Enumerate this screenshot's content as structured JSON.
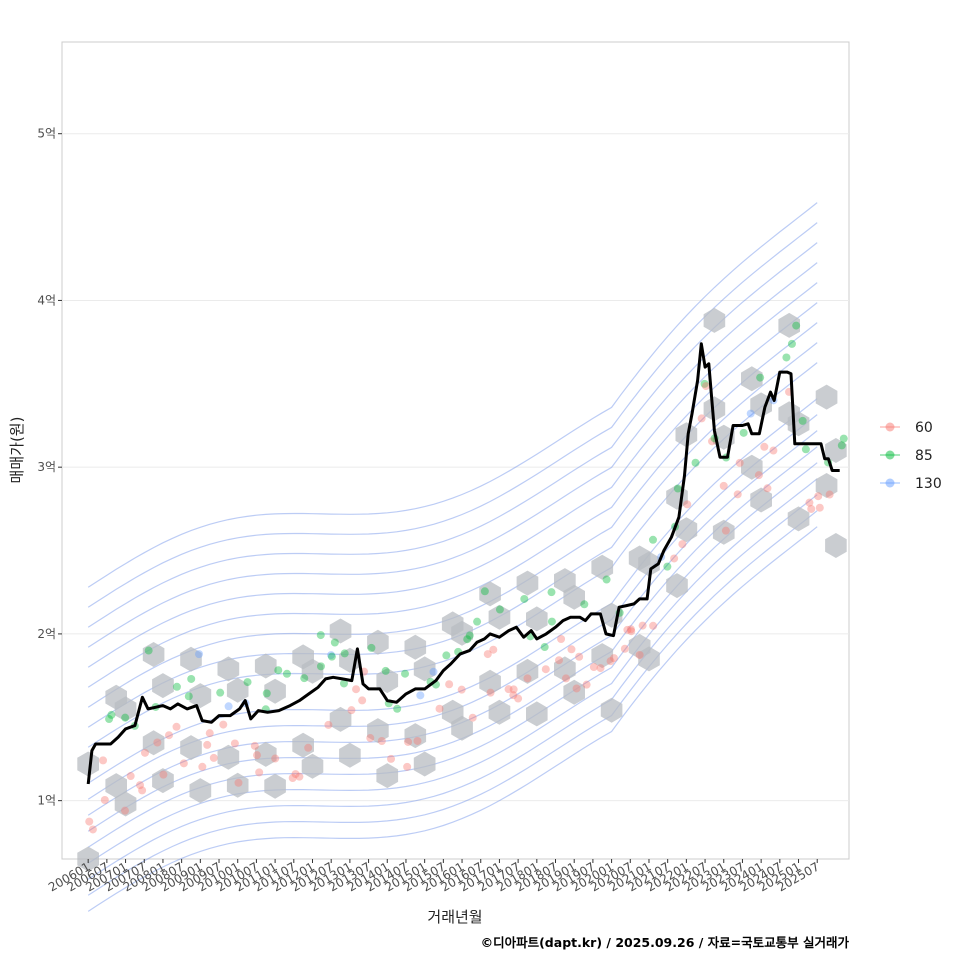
{
  "chart_data": {
    "type": "line",
    "xlabel": "거래년월",
    "ylabel": "매매가(원)",
    "caption": "©디아파트(dapt.kr) / 2025.09.26 / 자료=국토교통부 실거래가",
    "y_unit": "억원",
    "ylim": [
      0.65,
      5.55
    ],
    "x_index_range": [
      -1.4,
      40.7
    ],
    "grid": true,
    "y_ticks": [
      {
        "value": 1,
        "label": "1억"
      },
      {
        "value": 2,
        "label": "2억"
      },
      {
        "value": 3,
        "label": "3억"
      },
      {
        "value": 4,
        "label": "4억"
      },
      {
        "value": 5,
        "label": "5억"
      }
    ],
    "x_tick_labels": [
      "200601",
      "200607",
      "200701",
      "200707",
      "200801",
      "200807",
      "200901",
      "200907",
      "201001",
      "201007",
      "201101",
      "201107",
      "201201",
      "201207",
      "201301",
      "201307",
      "201401",
      "201407",
      "201501",
      "201507",
      "201601",
      "201607",
      "201701",
      "201707",
      "201801",
      "201807",
      "201901",
      "201907",
      "202001",
      "202007",
      "202101",
      "202107",
      "202201",
      "202207",
      "202301",
      "202307",
      "202401",
      "202407",
      "202501",
      "202507"
    ],
    "legend": {
      "placement": "right",
      "entries": [
        {
          "label": "60",
          "color": "#F8766D"
        },
        {
          "label": "85",
          "color": "#00BA38"
        },
        {
          "label": "130",
          "color": "#619CFF"
        }
      ]
    },
    "colors": {
      "line": "#000000",
      "hex": "#b8bcc2",
      "contour": "#6b8fe8",
      "grid": "#ebebeb",
      "panel_border": "#cccccc"
    },
    "trend_line": {
      "name": "median",
      "points": [
        [
          0,
          1.1
        ],
        [
          0.2,
          1.3
        ],
        [
          0.4,
          1.34
        ],
        [
          1.2,
          1.34
        ],
        [
          1.6,
          1.38
        ],
        [
          2.0,
          1.43
        ],
        [
          2.5,
          1.45
        ],
        [
          2.9,
          1.62
        ],
        [
          3.2,
          1.55
        ],
        [
          3.6,
          1.56
        ],
        [
          4.0,
          1.57
        ],
        [
          4.4,
          1.55
        ],
        [
          4.8,
          1.58
        ],
        [
          5.3,
          1.55
        ],
        [
          5.8,
          1.57
        ],
        [
          6.1,
          1.48
        ],
        [
          6.6,
          1.47
        ],
        [
          7.0,
          1.51
        ],
        [
          7.6,
          1.51
        ],
        [
          8.1,
          1.55
        ],
        [
          8.4,
          1.6
        ],
        [
          8.7,
          1.49
        ],
        [
          9.1,
          1.54
        ],
        [
          9.6,
          1.53
        ],
        [
          10.2,
          1.54
        ],
        [
          10.8,
          1.57
        ],
        [
          11.3,
          1.6
        ],
        [
          11.8,
          1.64
        ],
        [
          12.3,
          1.68
        ],
        [
          12.7,
          1.73
        ],
        [
          13.1,
          1.74
        ],
        [
          13.6,
          1.73
        ],
        [
          14.1,
          1.72
        ],
        [
          14.4,
          1.91
        ],
        [
          14.7,
          1.7
        ],
        [
          15.0,
          1.67
        ],
        [
          15.6,
          1.67
        ],
        [
          16.0,
          1.6
        ],
        [
          16.5,
          1.59
        ],
        [
          17.0,
          1.64
        ],
        [
          17.5,
          1.67
        ],
        [
          18.0,
          1.67
        ],
        [
          18.6,
          1.72
        ],
        [
          19.0,
          1.78
        ],
        [
          19.4,
          1.82
        ],
        [
          19.9,
          1.88
        ],
        [
          20.4,
          1.9
        ],
        [
          20.8,
          1.95
        ],
        [
          21.2,
          1.97
        ],
        [
          21.5,
          2.0
        ],
        [
          22.0,
          1.98
        ],
        [
          22.5,
          2.02
        ],
        [
          22.9,
          2.04
        ],
        [
          23.3,
          1.98
        ],
        [
          23.7,
          2.02
        ],
        [
          24.0,
          1.97
        ],
        [
          24.5,
          2.0
        ],
        [
          25.0,
          2.04
        ],
        [
          25.4,
          2.08
        ],
        [
          25.8,
          2.1
        ],
        [
          26.3,
          2.1
        ],
        [
          26.6,
          2.08
        ],
        [
          26.9,
          2.12
        ],
        [
          27.4,
          2.12
        ],
        [
          27.7,
          2.0
        ],
        [
          28.1,
          1.99
        ],
        [
          28.4,
          2.16
        ],
        [
          28.8,
          2.17
        ],
        [
          29.2,
          2.18
        ],
        [
          29.5,
          2.21
        ],
        [
          29.9,
          2.21
        ],
        [
          30.1,
          2.39
        ],
        [
          30.5,
          2.42
        ],
        [
          30.8,
          2.5
        ],
        [
          31.2,
          2.58
        ],
        [
          31.6,
          2.7
        ],
        [
          31.9,
          2.95
        ],
        [
          32.1,
          3.2
        ],
        [
          32.3,
          3.32
        ],
        [
          32.6,
          3.52
        ],
        [
          32.8,
          3.74
        ],
        [
          33.0,
          3.6
        ],
        [
          33.2,
          3.62
        ],
        [
          33.5,
          3.22
        ],
        [
          33.8,
          3.06
        ],
        [
          34.2,
          3.06
        ],
        [
          34.5,
          3.25
        ],
        [
          35.0,
          3.25
        ],
        [
          35.3,
          3.26
        ],
        [
          35.5,
          3.2
        ],
        [
          35.9,
          3.2
        ],
        [
          36.2,
          3.36
        ],
        [
          36.5,
          3.45
        ],
        [
          36.7,
          3.4
        ],
        [
          37.0,
          3.57
        ],
        [
          37.4,
          3.57
        ],
        [
          37.6,
          3.56
        ],
        [
          37.8,
          3.14
        ],
        [
          38.2,
          3.14
        ],
        [
          38.8,
          3.14
        ],
        [
          39.2,
          3.14
        ],
        [
          39.4,
          3.05
        ],
        [
          39.6,
          3.05
        ],
        [
          39.8,
          2.98
        ],
        [
          40.2,
          2.98
        ]
      ]
    }
  }
}
